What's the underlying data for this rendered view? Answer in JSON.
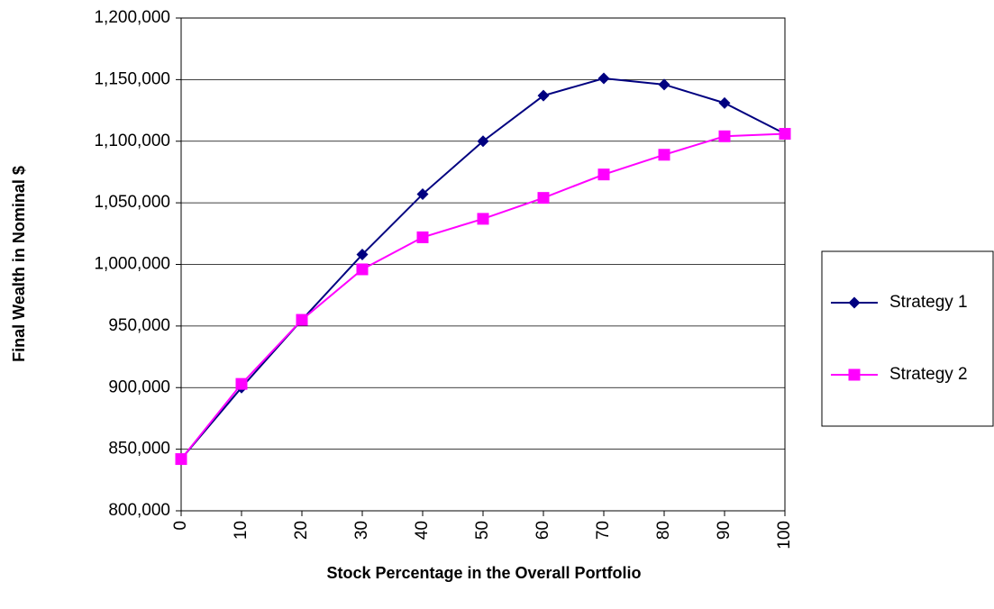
{
  "chart_data": {
    "type": "line",
    "x_label": "Stock Percentage in the Overall Portfolio",
    "y_label": "Final Wealth in Nominal $",
    "x": [
      0,
      10,
      20,
      30,
      40,
      50,
      60,
      70,
      80,
      90,
      100
    ],
    "series": [
      {
        "name": "Strategy 1",
        "color": "#000080",
        "marker": "diamond",
        "values": [
          842000,
          900000,
          955000,
          1008000,
          1057000,
          1100000,
          1137000,
          1151000,
          1146000,
          1131000,
          1106000
        ]
      },
      {
        "name": "Strategy 2",
        "color": "#ff00ff",
        "marker": "square",
        "values": [
          842000,
          903000,
          955000,
          996000,
          1022000,
          1037000,
          1054000,
          1073000,
          1089000,
          1104000,
          1106000
        ]
      }
    ],
    "xlim": [
      0,
      100
    ],
    "xticks": [
      0,
      10,
      20,
      30,
      40,
      50,
      60,
      70,
      80,
      90,
      100
    ],
    "ylim": [
      800000,
      1200000
    ],
    "yticks": [
      {
        "value": 800000,
        "label": "800,000"
      },
      {
        "value": 850000,
        "label": "850,000"
      },
      {
        "value": 900000,
        "label": "900,000"
      },
      {
        "value": 950000,
        "label": "950,000"
      },
      {
        "value": 1000000,
        "label": "1,000,000"
      },
      {
        "value": 1050000,
        "label": "1,050,000"
      },
      {
        "value": 1100000,
        "label": "1,100,000"
      },
      {
        "value": 1150000,
        "label": "1,150,000"
      },
      {
        "value": 1200000,
        "label": "1,200,000"
      }
    ],
    "grid": true,
    "legend": "right"
  }
}
